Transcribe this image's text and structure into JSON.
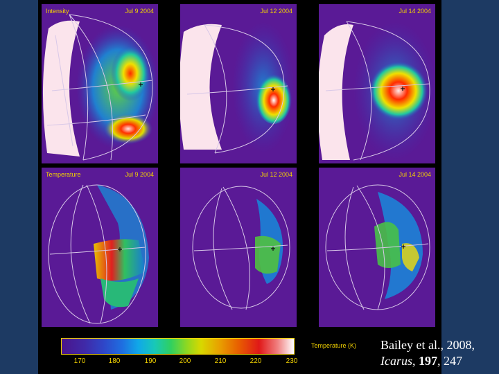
{
  "panels_top": [
    {
      "left_label": "Intensity",
      "date": "Jul 9 2004"
    },
    {
      "left_label": "",
      "date": "Jul 12 2004"
    },
    {
      "left_label": "",
      "date": "Jul 14 2004"
    }
  ],
  "panels_bottom": [
    {
      "left_label": "Temperature",
      "date": "Jul 9 2004"
    },
    {
      "left_label": "",
      "date": "Jul 12 2004"
    },
    {
      "left_label": "",
      "date": "Jul 14 2004"
    }
  ],
  "colorbar": {
    "title": "Temperature (K)",
    "ticks": [
      "170",
      "180",
      "190",
      "200",
      "210",
      "220",
      "230"
    ]
  },
  "citation": {
    "authors": "Bailey et al., 2008,",
    "journal": "Icarus",
    "volume": "197",
    "pages": "247"
  },
  "colors": {
    "background": "#1d3a63",
    "panel": "#5a1a96",
    "label": "#f2d200"
  }
}
